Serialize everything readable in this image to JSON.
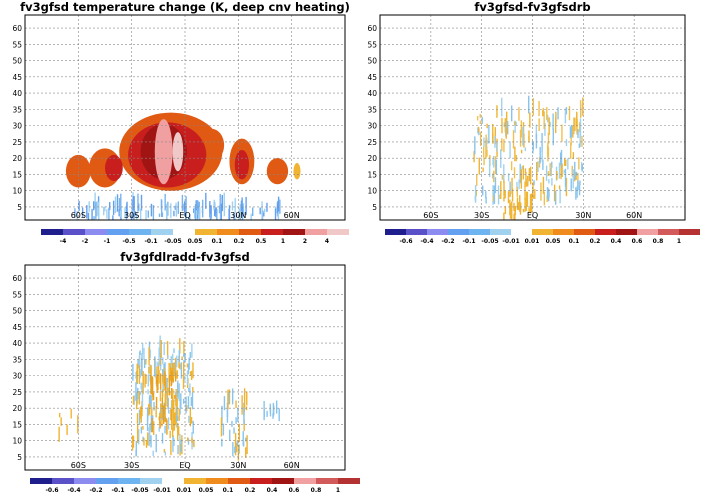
{
  "chart_data": [
    {
      "type": "heatmap",
      "title": "fv3gfsd temperature change (K, deep cnv heating)",
      "x_ticks": [
        "60S",
        "30S",
        "EQ",
        "30N",
        "60N"
      ],
      "x_tick_values": [
        -60,
        -30,
        0,
        30,
        60
      ],
      "xlim": [
        -90,
        90
      ],
      "y_ticks": [
        "5",
        "10",
        "15",
        "20",
        "25",
        "30",
        "35",
        "40",
        "45",
        "50",
        "55",
        "60"
      ],
      "ylim": [
        1,
        64
      ],
      "grid": true,
      "colorbar": {
        "labels": [
          "-4",
          "-2",
          "-1",
          "-0.5",
          "-0.1",
          "-0.05",
          "0.05",
          "0.1",
          "0.2",
          "0.5",
          "1",
          "2",
          "4"
        ],
        "colors": [
          "#1e1e8c",
          "#5a50c8",
          "#8c8cf0",
          "#64a0f0",
          "#6eb4f0",
          "#a0d2f0",
          "#ffffff",
          "#f0b432",
          "#f08c1e",
          "#e05a14",
          "#c81e1e",
          "#a01414",
          "#f0a0a0",
          "#f0c8c8"
        ]
      }
    },
    {
      "type": "heatmap",
      "title": "fv3gfsd-fv3gfsdrb",
      "x_ticks": [
        "60S",
        "30S",
        "EQ",
        "30N",
        "60N"
      ],
      "x_tick_values": [
        -60,
        -30,
        0,
        30,
        60
      ],
      "xlim": [
        -90,
        90
      ],
      "y_ticks": [
        "5",
        "10",
        "15",
        "20",
        "25",
        "30",
        "35",
        "40",
        "45",
        "50",
        "55",
        "60"
      ],
      "ylim": [
        1,
        64
      ],
      "grid": true,
      "colorbar": {
        "labels": [
          "-0.6",
          "-0.4",
          "-0.2",
          "-0.1",
          "-0.05",
          "-0.01",
          "0.01",
          "0.05",
          "0.1",
          "0.2",
          "0.4",
          "0.6",
          "0.8",
          "1"
        ],
        "colors": [
          "#1e1e8c",
          "#5a50c8",
          "#8c8cf0",
          "#64a0f0",
          "#6eb4f0",
          "#a0d2f0",
          "#ffffff",
          "#f0b432",
          "#f08c1e",
          "#e05a14",
          "#c81e1e",
          "#a01414",
          "#f0a0a0",
          "#d25a5a",
          "#b43232"
        ]
      }
    },
    {
      "type": "heatmap",
      "title": "fv3gfdlradd-fv3gfsd",
      "x_ticks": [
        "60S",
        "30S",
        "EQ",
        "30N",
        "60N"
      ],
      "x_tick_values": [
        -60,
        -30,
        0,
        30,
        60
      ],
      "xlim": [
        -90,
        90
      ],
      "y_ticks": [
        "5",
        "10",
        "15",
        "20",
        "25",
        "30",
        "35",
        "40",
        "45",
        "50",
        "55",
        "60"
      ],
      "ylim": [
        1,
        64
      ],
      "grid": true,
      "colorbar": {
        "labels": [
          "-0.6",
          "-0.4",
          "-0.2",
          "-0.1",
          "-0.05",
          "-0.01",
          "0.01",
          "0.05",
          "0.1",
          "0.2",
          "0.4",
          "0.6",
          "0.8",
          "1"
        ],
        "colors": [
          "#1e1e8c",
          "#5a50c8",
          "#8c8cf0",
          "#64a0f0",
          "#6eb4f0",
          "#a0d2f0",
          "#ffffff",
          "#f0b432",
          "#f08c1e",
          "#e05a14",
          "#c81e1e",
          "#a01414",
          "#f0a0a0",
          "#d25a5a",
          "#b43232"
        ]
      }
    }
  ]
}
